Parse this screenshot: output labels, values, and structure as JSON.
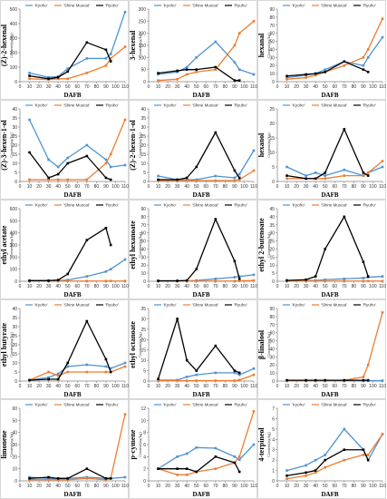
{
  "colors": {
    "Kyoho": "#4E93D3",
    "Shine Muscat": "#ED7D31",
    "Ryuho": "#000000"
  },
  "legend_labels": [
    "'Kyoho'",
    "'Shine Muscat'",
    "'Ryuho'"
  ],
  "xlabel": "DAFB",
  "ylabel_unit": "Content(ng/kg)",
  "x_ticks": [
    0,
    10,
    20,
    30,
    40,
    50,
    60,
    70,
    80,
    90,
    100,
    110
  ],
  "x": [
    10,
    30,
    40,
    50,
    70,
    90,
    95,
    110
  ],
  "chart_data": [
    {
      "type": "line",
      "title": "(Z)-2-hexenal",
      "ylabel": "Content(ng/kg)",
      "ylim": [
        0,
        500
      ],
      "yticks": [
        0,
        100,
        200,
        300,
        400,
        500
      ],
      "series": [
        {
          "name": "'Kyoho'",
          "values": [
            60,
            30,
            35,
            90,
            160,
            160,
            190,
            480
          ]
        },
        {
          "name": "'Shine Muscat'",
          "values": [
            20,
            15,
            20,
            20,
            60,
            110,
            160,
            240
          ]
        },
        {
          "name": "'Ryuho'",
          "values": [
            40,
            20,
            30,
            70,
            270,
            220,
            140,
            null
          ]
        }
      ]
    },
    {
      "type": "line",
      "title": "3-hexenal",
      "ylabel": "Content(ng/kg)",
      "ylim": [
        0,
        300
      ],
      "yticks": [
        0,
        50,
        100,
        150,
        200,
        250,
        300
      ],
      "series": [
        {
          "name": "'Kyoho'",
          "values": [
            30,
            40,
            60,
            100,
            165,
            80,
            50,
            30
          ]
        },
        {
          "name": "'Shine Muscat'",
          "values": [
            5,
            10,
            30,
            40,
            50,
            150,
            200,
            250
          ]
        },
        {
          "name": "'Ryuho'",
          "values": [
            35,
            45,
            50,
            50,
            60,
            5,
            5,
            null
          ]
        }
      ]
    },
    {
      "type": "line",
      "title": "hexanal",
      "ylabel": "Content(ng/kg)",
      "ylim": [
        0,
        90
      ],
      "yticks": [
        0,
        10,
        20,
        30,
        40,
        50,
        60,
        70,
        80,
        90
      ],
      "series": [
        {
          "name": "'Kyoho'",
          "values": [
            5,
            8,
            10,
            15,
            25,
            20,
            30,
            55
          ]
        },
        {
          "name": "'Shine Muscat'",
          "values": [
            3,
            5,
            8,
            12,
            20,
            30,
            40,
            78
          ]
        },
        {
          "name": "'Ryuho'",
          "values": [
            7,
            9,
            10,
            12,
            25,
            15,
            12,
            null
          ]
        }
      ]
    },
    {
      "type": "line",
      "title": "(Z)-3-hexen-1-ol",
      "ylabel": "Content(ng/kg)",
      "ylim": [
        0,
        40
      ],
      "yticks": [
        0,
        5,
        10,
        15,
        20,
        25,
        30,
        35,
        40
      ],
      "series": [
        {
          "name": "'Kyoho'",
          "values": [
            34,
            12,
            8,
            13,
            20,
            12,
            8,
            9
          ]
        },
        {
          "name": "'Shine Muscat'",
          "values": [
            1,
            1,
            1,
            1,
            1,
            10,
            15,
            34
          ]
        },
        {
          "name": "'Ryuho'",
          "values": [
            16,
            2,
            4,
            10,
            14,
            2,
            1,
            null
          ]
        }
      ]
    },
    {
      "type": "line",
      "title": "(Z)-2-hexen-1-ol",
      "ylabel": "Content(ng/kg)",
      "ylim": [
        0,
        40
      ],
      "yticks": [
        0,
        5,
        10,
        15,
        20,
        25,
        30,
        35,
        40
      ],
      "series": [
        {
          "name": "'Kyoho'",
          "values": [
            3,
            1,
            1,
            1,
            3,
            2,
            4,
            17
          ]
        },
        {
          "name": "'Shine Muscat'",
          "values": [
            0.5,
            0.5,
            0.5,
            0.5,
            0.5,
            0.5,
            1,
            6
          ]
        },
        {
          "name": "'Ryuho'",
          "values": [
            1,
            1,
            2,
            8,
            27,
            6,
            2,
            null
          ]
        }
      ]
    },
    {
      "type": "line",
      "title": "hexanol",
      "ylabel": "Content(ng/kg)",
      "ylim": [
        0,
        25
      ],
      "yticks": [
        0,
        5,
        10,
        15,
        20,
        25
      ],
      "series": [
        {
          "name": "'Kyoho'",
          "values": [
            5,
            2,
            3,
            2,
            4,
            2,
            3,
            5
          ]
        },
        {
          "name": "'Shine Muscat'",
          "values": [
            1,
            1,
            1,
            1,
            2,
            2,
            3,
            7
          ]
        },
        {
          "name": "'Ryuho'",
          "values": [
            2,
            1,
            1,
            3,
            18,
            3,
            2,
            null
          ]
        }
      ]
    },
    {
      "type": "line",
      "title": "ethyl acetate",
      "ylabel": "Content(ng/kg)",
      "ylim": [
        0,
        600
      ],
      "yticks": [
        0,
        100,
        200,
        300,
        400,
        500,
        600
      ],
      "series": [
        {
          "name": "'Kyoho'",
          "values": [
            5,
            5,
            5,
            10,
            40,
            80,
            100,
            180
          ]
        },
        {
          "name": "'Shine Muscat'",
          "values": [
            2,
            2,
            2,
            2,
            2,
            2,
            2,
            2
          ]
        },
        {
          "name": "'Ryuho'",
          "values": [
            5,
            5,
            10,
            60,
            340,
            440,
            300,
            null
          ]
        }
      ]
    },
    {
      "type": "line",
      "title": "ethyl hexanoate",
      "ylabel": "Content(ng/kg)",
      "ylim": [
        0,
        90
      ],
      "yticks": [
        0,
        10,
        20,
        30,
        40,
        50,
        60,
        70,
        80,
        90
      ],
      "series": [
        {
          "name": "'Kyoho'",
          "values": [
            0.5,
            0.5,
            0.5,
            1,
            3,
            5,
            6,
            8
          ]
        },
        {
          "name": "'Shine Muscat'",
          "values": [
            0.2,
            0.2,
            0.2,
            0.2,
            0.2,
            0.3,
            0.5,
            1
          ]
        },
        {
          "name": "'Ryuho'",
          "values": [
            0.5,
            0.5,
            1,
            15,
            77,
            25,
            3,
            null
          ]
        }
      ]
    },
    {
      "type": "line",
      "title": "ethyl 2-butenoate",
      "ylabel": "Content(ng/kg)",
      "ylim": [
        0,
        45
      ],
      "yticks": [
        0,
        5,
        10,
        15,
        20,
        25,
        30,
        35,
        40,
        45
      ],
      "series": [
        {
          "name": "'Kyoho'",
          "values": [
            0.5,
            0.5,
            0.5,
            1,
            1.5,
            2,
            2.5,
            3
          ]
        },
        {
          "name": "'Shine Muscat'",
          "values": [
            0.1,
            0.1,
            0.1,
            0.1,
            0.1,
            0.1,
            0.1,
            0.1
          ]
        },
        {
          "name": "'Ryuho'",
          "values": [
            0.5,
            1,
            3,
            20,
            40,
            12,
            3,
            null
          ]
        }
      ]
    },
    {
      "type": "line",
      "title": "ethyl butyrate",
      "ylabel": "Content(ng/kg)",
      "ylim": [
        0,
        40
      ],
      "yticks": [
        0,
        5,
        10,
        15,
        20,
        25,
        30,
        35,
        40
      ],
      "series": [
        {
          "name": "'Kyoho'",
          "values": [
            0.5,
            2,
            4,
            8,
            9,
            8,
            7,
            10
          ]
        },
        {
          "name": "'Shine Muscat'",
          "values": [
            0.5,
            5,
            3,
            5,
            5,
            5,
            5,
            8
          ]
        },
        {
          "name": "'Ryuho'",
          "values": [
            0.5,
            1,
            1,
            10,
            33,
            12,
            5,
            null
          ]
        }
      ]
    },
    {
      "type": "line",
      "title": "ethyl octanoate",
      "ylabel": "Content(ng/kg)",
      "ylim": [
        0,
        35
      ],
      "yticks": [
        0,
        5,
        10,
        15,
        20,
        25,
        30,
        35
      ],
      "series": [
        {
          "name": "'Kyoho'",
          "values": [
            0.5,
            0.5,
            2,
            3,
            4,
            4,
            3,
            6
          ]
        },
        {
          "name": "'Shine Muscat'",
          "values": [
            0.2,
            0.2,
            0.2,
            0.2,
            0.2,
            0.2,
            0.5,
            3
          ]
        },
        {
          "name": "'Ryuho'",
          "values": [
            1,
            30,
            10,
            5,
            17,
            5,
            4,
            null
          ]
        }
      ]
    },
    {
      "type": "line",
      "title": "β-linalool",
      "ylabel": "Content(ng/kg)",
      "ylim": [
        0,
        90
      ],
      "yticks": [
        0,
        10,
        20,
        30,
        40,
        50,
        60,
        70,
        80,
        90
      ],
      "series": [
        {
          "name": "'Kyoho'",
          "values": [
            0.5,
            0.5,
            0.5,
            0.5,
            0.5,
            0.5,
            0.5,
            0.5
          ]
        },
        {
          "name": "'Shine Muscat'",
          "values": [
            0.5,
            0.5,
            0.5,
            1,
            1,
            5,
            20,
            85
          ]
        },
        {
          "name": "'Ryuho'",
          "values": [
            1,
            1,
            1,
            1,
            1,
            1,
            1,
            null
          ]
        }
      ]
    },
    {
      "type": "line",
      "title": "limonene",
      "ylabel": "Content(ng/kg)",
      "ylim": [
        0,
        60
      ],
      "yticks": [
        0,
        10,
        20,
        30,
        40,
        50,
        60
      ],
      "series": [
        {
          "name": "'Kyoho'",
          "values": [
            3,
            2,
            2,
            2,
            3,
            2,
            2,
            3
          ]
        },
        {
          "name": "'Shine Muscat'",
          "values": [
            1,
            1,
            1,
            1,
            2,
            1,
            2,
            55
          ]
        },
        {
          "name": "'Ryuho'",
          "values": [
            2,
            3,
            2,
            2,
            10,
            2,
            2,
            null
          ]
        }
      ]
    },
    {
      "type": "line",
      "title": "p-cymene",
      "ylabel": "Content(ng/kg)",
      "ylim": [
        0,
        12
      ],
      "yticks": [
        0,
        2,
        4,
        6,
        8,
        10,
        12
      ],
      "series": [
        {
          "name": "'Kyoho'",
          "values": [
            2,
            4,
            4.5,
            5.5,
            5.4,
            4,
            3.5,
            6
          ]
        },
        {
          "name": "'Shine Muscat'",
          "values": [
            2,
            1,
            1,
            1.5,
            2,
            3,
            4,
            11.5
          ]
        },
        {
          "name": "'Ryuho'",
          "values": [
            2,
            2,
            2,
            1.5,
            4,
            3,
            1.5,
            null
          ]
        }
      ]
    },
    {
      "type": "line",
      "title": "4-terpineol",
      "ylabel": "Content(ng/kg)",
      "ylim": [
        0,
        7
      ],
      "yticks": [
        0,
        1,
        2,
        3,
        4,
        5,
        6,
        7
      ],
      "series": [
        {
          "name": "'Kyoho'",
          "values": [
            1,
            1.5,
            2,
            2.5,
            5,
            3,
            2,
            4.5
          ]
        },
        {
          "name": "'Shine Muscat'",
          "values": [
            0.2,
            0.5,
            0.8,
            1.3,
            2,
            2.5,
            2.5,
            4.5
          ]
        },
        {
          "name": "'Ryuho'",
          "values": [
            0.5,
            0.8,
            1,
            2,
            3,
            3,
            2,
            null
          ]
        }
      ]
    }
  ]
}
